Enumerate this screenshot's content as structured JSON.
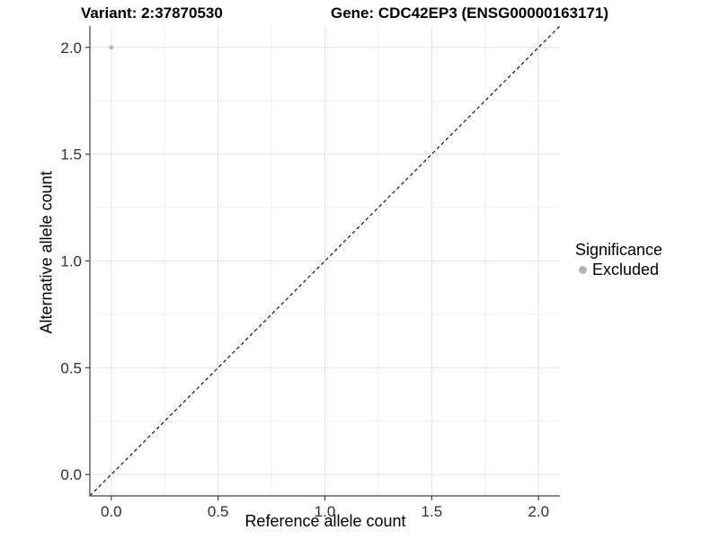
{
  "chart_data": {
    "type": "scatter",
    "title_left": "Variant: 2:37870530",
    "title_right": "Gene: CDC42EP3 (ENSG00000163171)",
    "xlabel": "Reference allele count",
    "ylabel": "Alternative allele count",
    "xlim": [
      -0.1,
      2.1
    ],
    "ylim": [
      -0.1,
      2.1
    ],
    "x_ticks": [
      0.0,
      0.5,
      1.0,
      1.5,
      2.0
    ],
    "y_ticks": [
      0.0,
      0.5,
      1.0,
      1.5,
      2.0
    ],
    "x_tick_labels": [
      "0.0",
      "0.5",
      "1.0",
      "1.5",
      "2.0"
    ],
    "y_tick_labels": [
      "0.0",
      "0.5",
      "1.0",
      "1.5",
      "2.0"
    ],
    "grid_minor": [
      0.25,
      0.75,
      1.25,
      1.75
    ],
    "grid": "major+minor",
    "series": [
      {
        "name": "Excluded",
        "marker": "circle",
        "color": "#b5b5b5",
        "points": [
          [
            0.0,
            2.0
          ]
        ]
      }
    ],
    "reference_line": {
      "type": "identity y=x",
      "style": "dashed",
      "color": "#000000",
      "from": [
        -0.1,
        -0.1
      ],
      "to": [
        2.1,
        2.1
      ]
    },
    "legend": {
      "title": "Significance",
      "position": "right",
      "items": [
        {
          "label": "Excluded",
          "color": "#b5b5b5",
          "marker": "circle"
        }
      ]
    },
    "colors": {
      "background": "#ffffff",
      "grid_major": "#e2e2e2",
      "grid_minor": "#f0f0f0",
      "axis_line": "#404040",
      "tick_text": "#303030",
      "point": "#b5b5b5"
    }
  }
}
